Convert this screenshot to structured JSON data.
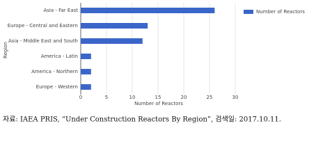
{
  "chart_data": {
    "type": "bar",
    "orientation": "horizontal",
    "categories": [
      "Asia - Far East",
      "Europe - Central and Eastern",
      "Asia - Middle East and South",
      "America - Latin",
      "America - Northern",
      "Europe - Western"
    ],
    "series": [
      {
        "name": "Number of Reactors",
        "color": "#3b66c9",
        "values": [
          26,
          13,
          12,
          2,
          2,
          2
        ]
      }
    ],
    "xlabel": "Number of Reactors",
    "ylabel": "Region",
    "xlim": [
      0,
      30
    ],
    "xticks": [
      0,
      5,
      10,
      15,
      20,
      25,
      30
    ],
    "grid": true,
    "legend": "upper right"
  },
  "caption": "자료: IAEA PRIS, “Under Construction Reactors By Region”, 검색일: 2017.10.11."
}
